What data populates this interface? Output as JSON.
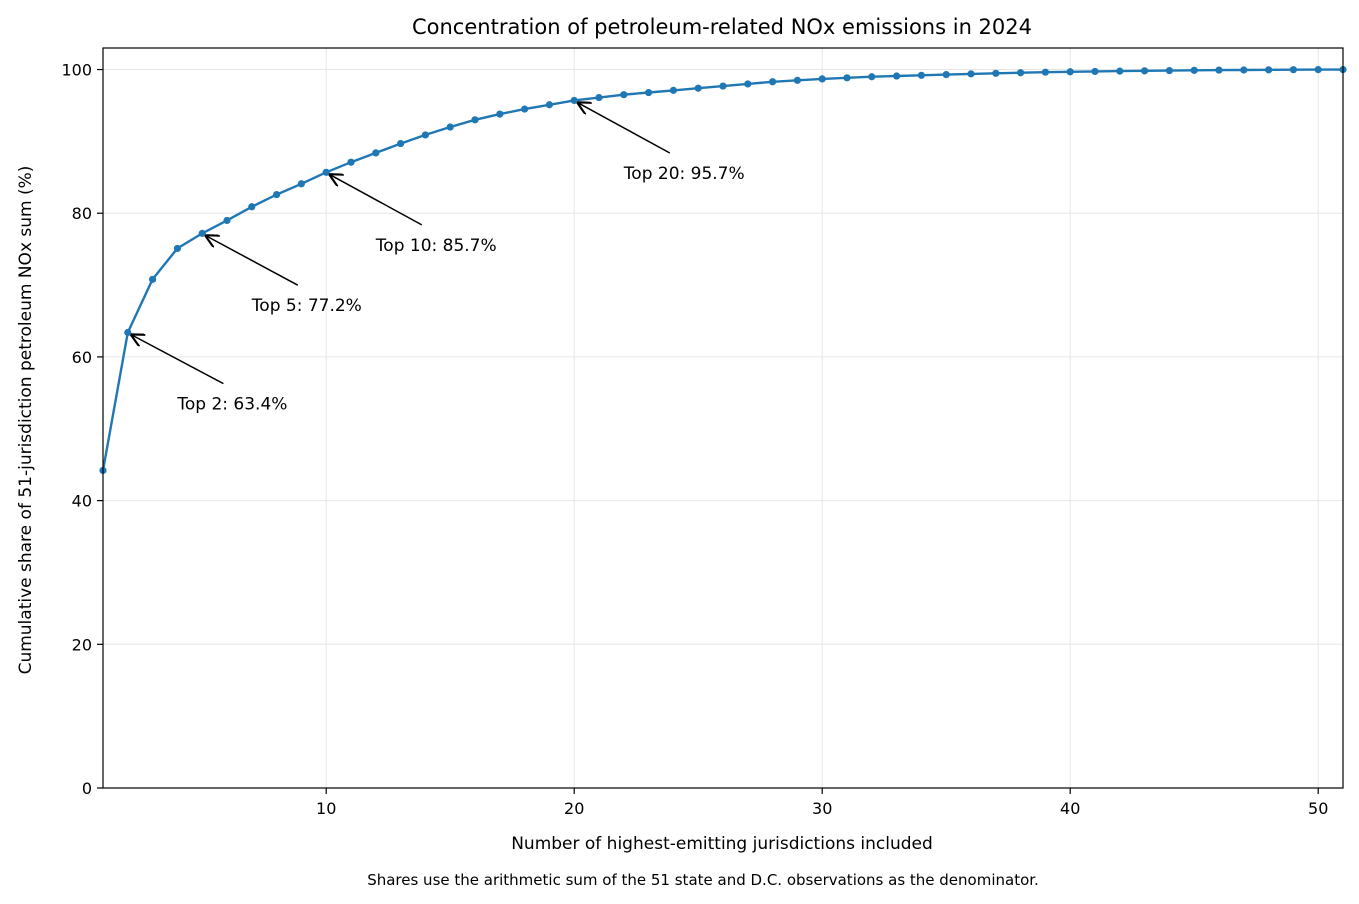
{
  "chart_data": {
    "type": "line",
    "title": "Concentration of petroleum-related NOx emissions in 2024",
    "xlabel": "Number of highest-emitting jurisdictions included",
    "ylabel": "Cumulative share of 51-jurisdiction petroleum NOx sum (%)",
    "caption": "Shares use the arithmetic sum of the 51 state and D.C. observations as the denominator.",
    "xlim": [
      1,
      51
    ],
    "ylim": [
      0,
      103
    ],
    "x_ticks": [
      10,
      20,
      30,
      40,
      50
    ],
    "y_ticks": [
      0,
      20,
      40,
      60,
      80,
      100
    ],
    "grid": true,
    "color": "#1f77b4",
    "x": [
      1,
      2,
      3,
      4,
      5,
      6,
      7,
      8,
      9,
      10,
      11,
      12,
      13,
      14,
      15,
      16,
      17,
      18,
      19,
      20,
      21,
      22,
      23,
      24,
      25,
      26,
      27,
      28,
      29,
      30,
      31,
      32,
      33,
      34,
      35,
      36,
      37,
      38,
      39,
      40,
      41,
      42,
      43,
      44,
      45,
      46,
      47,
      48,
      49,
      50,
      51
    ],
    "values": [
      44.2,
      63.4,
      70.8,
      75.1,
      77.2,
      79.0,
      80.9,
      82.6,
      84.1,
      85.7,
      87.1,
      88.4,
      89.7,
      90.9,
      92.0,
      93.0,
      93.8,
      94.5,
      95.1,
      95.7,
      96.1,
      96.5,
      96.8,
      97.1,
      97.4,
      97.7,
      98.0,
      98.3,
      98.5,
      98.7,
      98.85,
      99.0,
      99.1,
      99.2,
      99.3,
      99.4,
      99.48,
      99.56,
      99.63,
      99.69,
      99.74,
      99.78,
      99.82,
      99.86,
      99.89,
      99.92,
      99.94,
      99.96,
      99.98,
      99.99,
      100.0
    ],
    "annotations": [
      {
        "label": "Top 2: 63.4%",
        "x": 2,
        "y": 63.4,
        "text_x": 4,
        "text_y": 53.5
      },
      {
        "label": "Top 5: 77.2%",
        "x": 5,
        "y": 77.2,
        "text_x": 7,
        "text_y": 67.2
      },
      {
        "label": "Top 10: 85.7%",
        "x": 10,
        "y": 85.7,
        "text_x": 12,
        "text_y": 75.6
      },
      {
        "label": "Top 20: 95.7%",
        "x": 20,
        "y": 95.7,
        "text_x": 22,
        "text_y": 85.6
      }
    ]
  }
}
